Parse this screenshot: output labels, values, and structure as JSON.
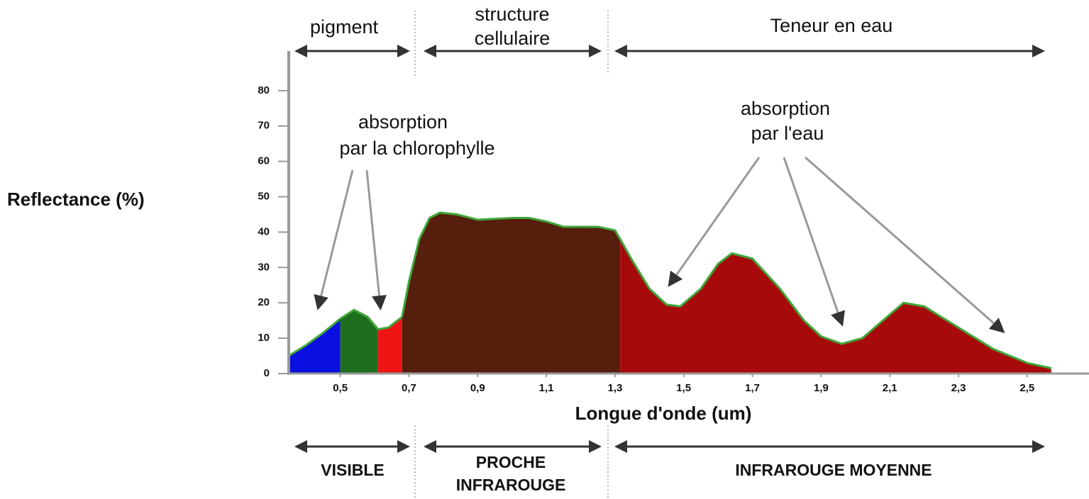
{
  "chart_data": {
    "type": "area",
    "ylabel": "Reflectance (%)",
    "xlabel": "Longue d'onde (um)",
    "xlim": [
      0.35,
      2.68
    ],
    "ylim": [
      0,
      90
    ],
    "yticks": [
      0,
      10,
      20,
      30,
      40,
      50,
      60,
      70,
      80
    ],
    "xticks": [
      {
        "value": 0.5,
        "label": "0,5"
      },
      {
        "value": 0.7,
        "label": "0,7"
      },
      {
        "value": 0.9,
        "label": "0,9"
      },
      {
        "value": 1.1,
        "label": "1,1"
      },
      {
        "value": 1.3,
        "label": "1,3"
      },
      {
        "value": 1.5,
        "label": "1,5"
      },
      {
        "value": 1.7,
        "label": "1,7"
      },
      {
        "value": 1.9,
        "label": "1,9"
      },
      {
        "value": 2.1,
        "label": "2,1"
      },
      {
        "value": 2.3,
        "label": "2,3"
      },
      {
        "value": 2.5,
        "label": "2,5"
      }
    ],
    "outline_color": "#3fa63a",
    "series": [
      {
        "color": "#0a10e0",
        "x": [
          0.35,
          0.4,
          0.45,
          0.5
        ],
        "values": [
          5,
          8,
          11.5,
          15.5
        ]
      },
      {
        "color": "#1e6e1e",
        "x": [
          0.5,
          0.54,
          0.58,
          0.61
        ],
        "values": [
          15.5,
          18,
          16,
          12.5
        ]
      },
      {
        "color": "#ee1515",
        "x": [
          0.61,
          0.64,
          0.68
        ],
        "values": [
          12.5,
          13,
          16
        ]
      },
      {
        "color": "#561e0c",
        "x": [
          0.68,
          0.7,
          0.73,
          0.76,
          0.79,
          0.84,
          0.9,
          1.0,
          1.05,
          1.1,
          1.15,
          1.25,
          1.3,
          1.315
        ],
        "values": [
          16,
          26,
          38,
          44,
          45.5,
          45,
          43.5,
          44,
          44,
          43,
          41.5,
          41.5,
          40.5,
          38
        ]
      },
      {
        "color": "#a70a0a",
        "x": [
          1.315,
          1.35,
          1.4,
          1.45,
          1.49,
          1.55,
          1.6,
          1.64,
          1.7,
          1.78,
          1.85,
          1.9,
          1.96,
          2.02,
          2.08,
          2.14,
          2.2,
          2.3,
          2.4,
          2.5,
          2.57
        ],
        "values": [
          38,
          32,
          24,
          19.5,
          19,
          24,
          31,
          34,
          32.5,
          24,
          15,
          10.5,
          8.4,
          10,
          15,
          20,
          19,
          13,
          7,
          3,
          1.5
        ]
      }
    ],
    "top_bands": [
      [
        "pigment"
      ],
      [
        "structure",
        "cellulaire"
      ],
      [
        "Teneur en eau"
      ]
    ],
    "bottom_bands": [
      [
        "VISIBLE"
      ],
      [
        "PROCHE",
        "INFRAROUGE"
      ],
      [
        "INFRAROUGE MOYENNE"
      ]
    ],
    "annotations": [
      [
        "absorption",
        "par la chlorophylle"
      ],
      [
        "absorption",
        "par l'eau"
      ]
    ]
  }
}
